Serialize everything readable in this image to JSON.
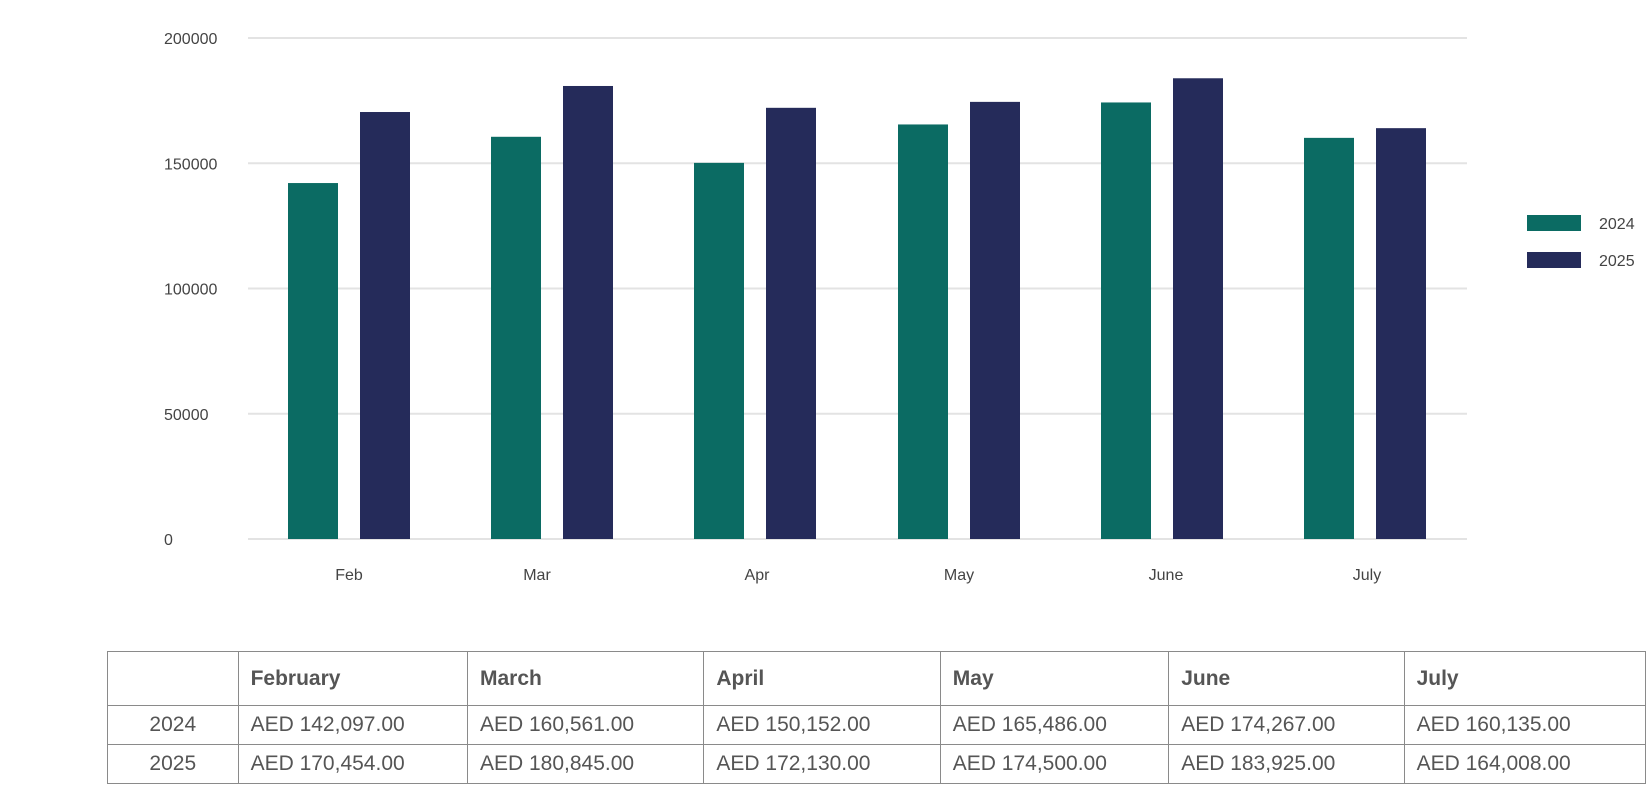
{
  "chart_data": {
    "type": "bar",
    "categories": [
      "Feb",
      "Mar",
      "Apr",
      "May",
      "June",
      "July"
    ],
    "series": [
      {
        "name": "2024",
        "color": "#0b6b63",
        "values": [
          142097,
          160561,
          150152,
          165486,
          174267,
          160135
        ]
      },
      {
        "name": "2025",
        "color": "#252b5a",
        "values": [
          170454,
          180845,
          172130,
          174500,
          183925,
          164008
        ]
      }
    ],
    "yticks": [
      "0",
      "50000",
      "100000",
      "150000",
      "200000"
    ],
    "ylim": [
      0,
      200000
    ],
    "grid": true,
    "legend": "right"
  },
  "table": {
    "headers": [
      "",
      "February",
      "March",
      "April",
      "May",
      "June",
      "July"
    ],
    "rows": [
      {
        "label": "2024",
        "cells": [
          "AED 142,097.00",
          "AED 160,561.00",
          "AED 150,152.00",
          "AED 165,486.00",
          "AED 174,267.00",
          "AED 160,135.00"
        ]
      },
      {
        "label": "2025",
        "cells": [
          "AED 170,454.00",
          "AED 180,845.00",
          "AED 172,130.00",
          "AED 174,500.00",
          "AED 183,925.00",
          "AED 164,008.00"
        ]
      }
    ]
  }
}
